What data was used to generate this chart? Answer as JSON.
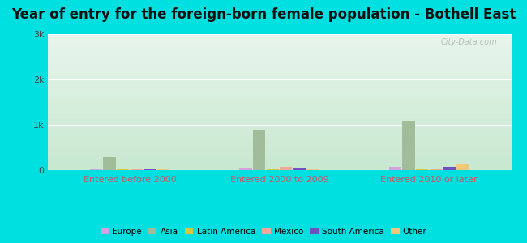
{
  "title": "Year of entry for the foreign-born female population - Bothell East",
  "categories": [
    "Entered before 2000",
    "Entered 2000 to 2009",
    "Entered 2010 or later"
  ],
  "series": {
    "Europe": [
      10,
      50,
      70
    ],
    "Asia": [
      290,
      900,
      1090
    ],
    "Latin America": [
      10,
      10,
      10
    ],
    "Mexico": [
      10,
      70,
      10
    ],
    "South America": [
      10,
      60,
      70
    ],
    "Other": [
      20,
      10,
      120
    ]
  },
  "colors": {
    "Europe": "#d4a0e0",
    "Asia": "#a0bc98",
    "Latin America": "#d8c840",
    "Mexico": "#f0a898",
    "South America": "#7050c0",
    "Other": "#f0c878"
  },
  "ylim": [
    0,
    3000
  ],
  "yticks": [
    0,
    1000,
    2000,
    3000
  ],
  "ytick_labels": [
    "0",
    "1k",
    "2k",
    "3k"
  ],
  "background_color": "#00e0e0",
  "title_fontsize": 12,
  "bar_width": 0.09,
  "watermark": "City-Data.com"
}
